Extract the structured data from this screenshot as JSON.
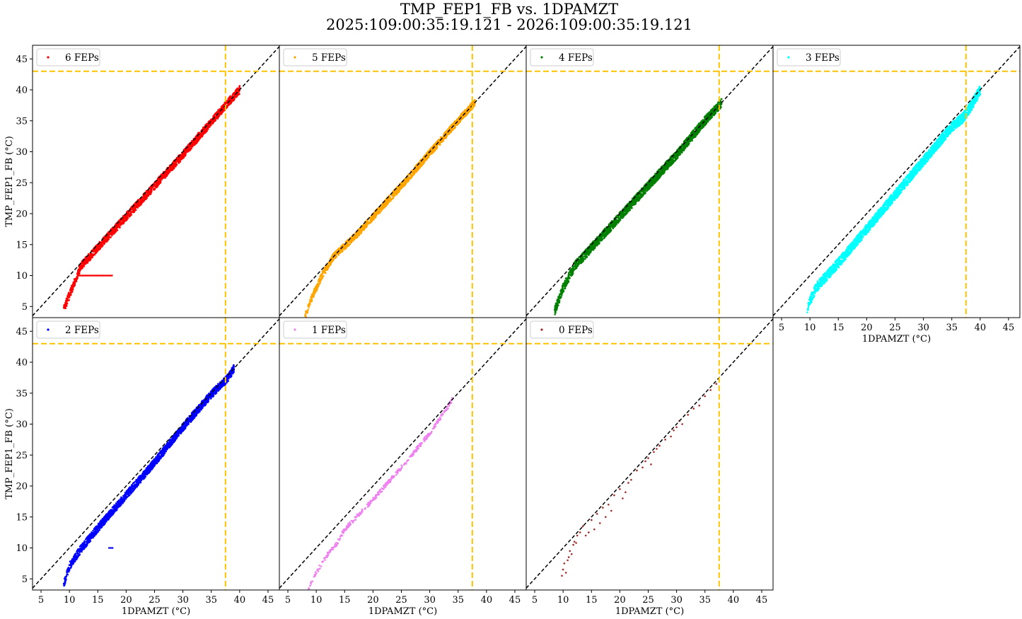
{
  "figure": {
    "title_line1": "TMP_FEP1_FB vs. 1DPAMZT",
    "title_line2": "2025:109:00:35:19.121 - 2026:109:00:35:19.121"
  },
  "chart_data": {
    "type": "scatter",
    "xlabel": "1DPAMZT (°C)",
    "ylabel": "TMP_FEP1_FB (°C)",
    "xlim": [
      3.5,
      47.0
    ],
    "ylim": [
      3.2,
      47.2
    ],
    "x_ticks": [
      5,
      10,
      15,
      20,
      25,
      30,
      35,
      40,
      45
    ],
    "y_ticks": [
      5,
      10,
      15,
      20,
      25,
      30,
      35,
      40,
      45
    ],
    "grid": false,
    "legend_placement": "upper left",
    "reference_lines": {
      "diagonal": {
        "description": "y = x",
        "color": "#000000",
        "style": "dashed"
      },
      "vertical_limit_x": 37.5,
      "horizontal_limit_y": 43.0,
      "limit_color": "#ffc200"
    },
    "panels": [
      {
        "name": "6 FEPs",
        "color": "#ff0000",
        "envelope": [
          [
            9.0,
            4.6
          ],
          [
            10.5,
            8.0
          ],
          [
            12.0,
            11.5
          ],
          [
            15.0,
            14.5
          ],
          [
            20.0,
            19.5
          ],
          [
            25.0,
            24.5
          ],
          [
            30.0,
            29.5
          ],
          [
            35.0,
            34.8
          ],
          [
            38.0,
            38.0
          ],
          [
            40.0,
            40.0
          ]
        ],
        "spread": 0.8,
        "n_points": 1800,
        "outlier_streak": {
          "x_range": [
            11.5,
            17.5
          ],
          "y": 10.0
        }
      },
      {
        "name": "5 FEPs",
        "color": "#ffa500",
        "envelope": [
          [
            8.0,
            3.3
          ],
          [
            9.0,
            6.0
          ],
          [
            11.0,
            10.0
          ],
          [
            13.0,
            13.0
          ],
          [
            17.0,
            16.5
          ],
          [
            20.0,
            19.5
          ],
          [
            25.0,
            24.5
          ],
          [
            30.0,
            29.8
          ],
          [
            35.0,
            35.0
          ],
          [
            38.0,
            38.0
          ]
        ],
        "spread": 0.7,
        "n_points": 1600
      },
      {
        "name": "4 FEPs",
        "color": "#008000",
        "envelope": [
          [
            8.5,
            4.2
          ],
          [
            10.0,
            8.0
          ],
          [
            12.0,
            11.5
          ],
          [
            15.0,
            14.5
          ],
          [
            20.0,
            19.5
          ],
          [
            25.0,
            24.5
          ],
          [
            30.0,
            29.5
          ],
          [
            35.0,
            35.0
          ],
          [
            38.0,
            38.0
          ]
        ],
        "spread": 0.9,
        "n_points": 2200
      },
      {
        "name": "3 FEPs",
        "color": "#00ffff",
        "envelope": [
          [
            9.5,
            4.7
          ],
          [
            11.0,
            8.0
          ],
          [
            15.0,
            12.0
          ],
          [
            20.0,
            17.5
          ],
          [
            25.0,
            23.0
          ],
          [
            30.0,
            28.5
          ],
          [
            35.0,
            34.0
          ],
          [
            37.0,
            35.5
          ],
          [
            38.5,
            37.5
          ],
          [
            40.0,
            40.0
          ]
        ],
        "spread": 1.0,
        "n_points": 2400
      },
      {
        "name": "2 FEPs",
        "color": "#0000ff",
        "envelope": [
          [
            9.0,
            4.2
          ],
          [
            10.0,
            7.0
          ],
          [
            12.0,
            9.8
          ],
          [
            15.0,
            13.2
          ],
          [
            20.0,
            18.5
          ],
          [
            25.0,
            23.8
          ],
          [
            30.0,
            29.5
          ],
          [
            35.0,
            34.8
          ],
          [
            38.0,
            37.5
          ],
          [
            39.0,
            39.0
          ]
        ],
        "spread": 0.8,
        "n_points": 2000,
        "outlier_streak": {
          "x_range": [
            17.0,
            17.6
          ],
          "y": 10.0
        }
      },
      {
        "name": "1 FEPs",
        "color": "#ee82ee",
        "envelope": [
          [
            8.5,
            3.3
          ],
          [
            10.0,
            6.0
          ],
          [
            12.0,
            9.0
          ],
          [
            13.5,
            10.5
          ],
          [
            15.0,
            13.0
          ],
          [
            20.0,
            17.8
          ],
          [
            25.0,
            23.0
          ],
          [
            30.0,
            28.5
          ],
          [
            33.0,
            32.5
          ],
          [
            34.0,
            34.0
          ]
        ],
        "spread": 0.4,
        "n_points": 420
      },
      {
        "name": "0 FEPs",
        "color": "#a52a2a",
        "points": [
          [
            9.8,
            5.5
          ],
          [
            10.0,
            6.5
          ],
          [
            10.2,
            7.5
          ],
          [
            10.5,
            6.0
          ],
          [
            10.8,
            8.0
          ],
          [
            11.0,
            8.5
          ],
          [
            11.2,
            9.5
          ],
          [
            11.5,
            9.0
          ],
          [
            11.8,
            10.5
          ],
          [
            12.0,
            11.0
          ],
          [
            12.3,
            10.8
          ],
          [
            12.5,
            12.0
          ],
          [
            13.0,
            12.5
          ],
          [
            13.5,
            13.5
          ],
          [
            14.0,
            12.0
          ],
          [
            14.5,
            12.5
          ],
          [
            15.0,
            14.5
          ],
          [
            15.5,
            13.0
          ],
          [
            16.0,
            15.5
          ],
          [
            16.5,
            14.0
          ],
          [
            17.0,
            16.5
          ],
          [
            17.5,
            15.0
          ],
          [
            18.0,
            17.0
          ],
          [
            18.5,
            16.0
          ],
          [
            19.0,
            18.5
          ],
          [
            20.0,
            19.5
          ],
          [
            20.5,
            18.0
          ],
          [
            21.0,
            19.0
          ],
          [
            21.5,
            20.5
          ],
          [
            22.0,
            21.0
          ],
          [
            23.0,
            22.5
          ],
          [
            24.0,
            23.0
          ],
          [
            24.5,
            24.0
          ],
          [
            25.0,
            24.5
          ],
          [
            25.5,
            23.5
          ],
          [
            26.0,
            25.5
          ],
          [
            26.5,
            26.0
          ],
          [
            27.0,
            26.5
          ],
          [
            28.0,
            27.5
          ],
          [
            29.0,
            28.0
          ],
          [
            29.5,
            29.0
          ],
          [
            30.0,
            29.5
          ],
          [
            30.5,
            30.5
          ],
          [
            31.0,
            30.0
          ],
          [
            32.0,
            31.5
          ],
          [
            33.0,
            32.5
          ],
          [
            34.0,
            33.0
          ],
          [
            35.0,
            34.5
          ],
          [
            36.0,
            35.5
          ],
          [
            37.0,
            36.5
          ]
        ]
      }
    ]
  }
}
